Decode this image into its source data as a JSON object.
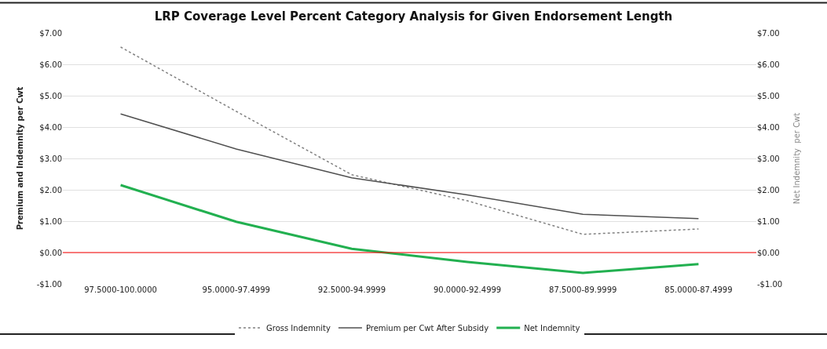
{
  "chart_data": {
    "type": "line",
    "title": "LRP Coverage Level Percent Category Analysis for Given Endorsement Length",
    "ylabel": "Premium and Indemnity per Cwt",
    "y2label": "Net Indemnity  per Cwt",
    "categories": [
      "97.5000-100.0000",
      "95.0000-97.4999",
      "92.5000-94.9999",
      "90.0000-92.4999",
      "87.5000-89.9999",
      "85.0000-87.4999"
    ],
    "series": [
      {
        "name": "Gross Indemnity",
        "color": "#808080",
        "line_style": "dotted",
        "values": [
          6.55,
          4.5,
          2.48,
          1.65,
          0.58,
          0.75
        ]
      },
      {
        "name": "Premium per Cwt After Subsidy",
        "color": "#505050",
        "line_style": "solid",
        "values": [
          4.42,
          3.3,
          2.38,
          1.84,
          1.22,
          1.08
        ]
      },
      {
        "name": "Net Indemnity",
        "color": "#22b050",
        "line_style": "solid",
        "axis": "y2",
        "values": [
          2.15,
          0.98,
          0.12,
          -0.3,
          -0.65,
          -0.37
        ]
      }
    ],
    "ylim": [
      -1,
      7
    ],
    "yticks": [
      {
        "value": -1,
        "label": "-$1.00"
      },
      {
        "value": 0,
        "label": "$0.00"
      },
      {
        "value": 1,
        "label": "$1.00"
      },
      {
        "value": 2,
        "label": "$2.00"
      },
      {
        "value": 3,
        "label": "$3.00"
      },
      {
        "value": 4,
        "label": "$4.00"
      },
      {
        "value": 5,
        "label": "$5.00"
      },
      {
        "value": 6,
        "label": "$6.00"
      },
      {
        "value": 7,
        "label": "$7.00"
      }
    ],
    "y2lim": [
      -1,
      7
    ],
    "y2ticks": [
      {
        "value": -1,
        "label": "-$1.00"
      },
      {
        "value": 0,
        "label": "$0.00"
      },
      {
        "value": 1,
        "label": "$1.00"
      },
      {
        "value": 2,
        "label": "$2.00"
      },
      {
        "value": 3,
        "label": "$3.00"
      },
      {
        "value": 4,
        "label": "$4.00"
      },
      {
        "value": 5,
        "label": "$5.00"
      },
      {
        "value": 6,
        "label": "$6.00"
      },
      {
        "value": 7,
        "label": "$7.00"
      }
    ],
    "ref_lines": [
      {
        "axis": "y",
        "value": 0,
        "color": "#ff0000"
      }
    ],
    "grid": "y",
    "legend": "bottom",
    "marker": "none"
  }
}
